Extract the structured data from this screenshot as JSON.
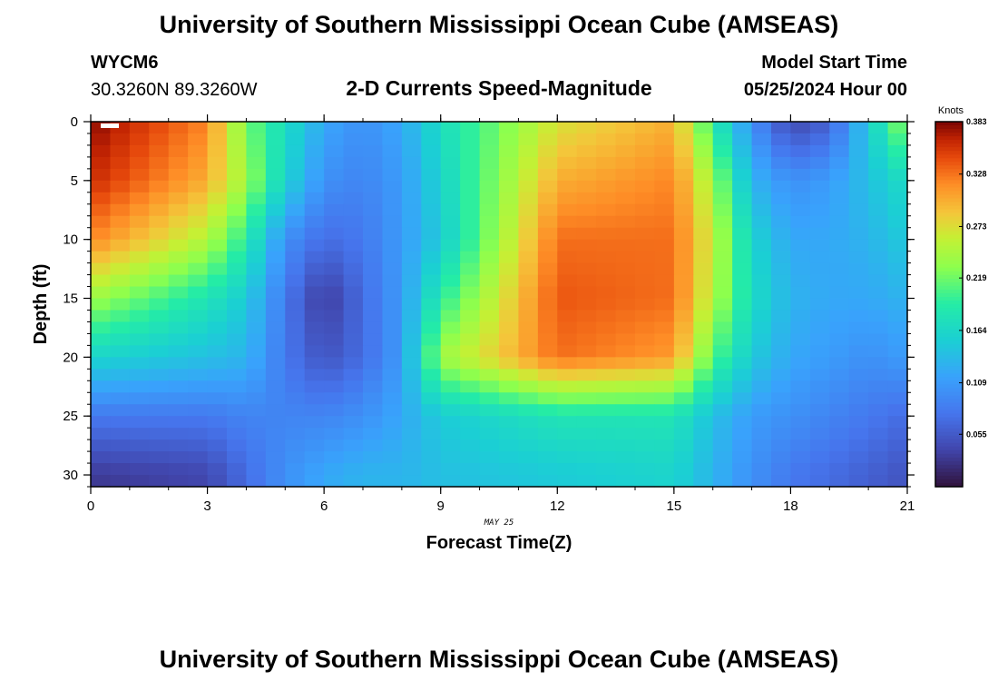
{
  "chart_data": {
    "type": "heatmap",
    "title": "University of Southern Mississippi Ocean Cube (AMSEAS)",
    "footer_title": "University of Southern Mississippi Ocean Cube (AMSEAS)",
    "station": "WYCM6",
    "coordinates": "30.3260N  89.3260W",
    "subtitle": "2-D Currents Speed-Magnitude",
    "model_start_label": "Model Start Time",
    "model_start_value": "05/25/2024 Hour 00",
    "xlabel": "Forecast Time(Z)",
    "ylabel": "Depth (ft)",
    "date_label": "MAY 25",
    "x_range": [
      0,
      21
    ],
    "y_range": [
      0,
      31
    ],
    "x_ticks": [
      "0",
      "3",
      "6",
      "9",
      "12",
      "15",
      "18",
      "21"
    ],
    "x_tick_values": [
      0,
      3,
      6,
      9,
      12,
      15,
      18,
      21
    ],
    "y_ticks": [
      "0",
      "5",
      "10",
      "15",
      "20",
      "25",
      "30"
    ],
    "y_tick_values": [
      0,
      5,
      10,
      15,
      20,
      25,
      30
    ],
    "colorbar": {
      "unit": "Knots",
      "min": 0.0,
      "max": 0.383,
      "ticks": [
        "0.383",
        "0.328",
        "0.273",
        "0.219",
        "0.164",
        "0.109",
        "0.055"
      ],
      "tick_values": [
        0.383,
        0.328,
        0.273,
        0.219,
        0.164,
        0.109,
        0.055
      ]
    },
    "grid": {
      "times": [
        0,
        3,
        4,
        5,
        6,
        7,
        8,
        9,
        12,
        15,
        16,
        17,
        18,
        19,
        20,
        21
      ],
      "depths": [
        0,
        5,
        10,
        15,
        20,
        25,
        30
      ],
      "values": [
        [
          0.38,
          0.32,
          0.22,
          0.17,
          0.12,
          0.1,
          0.12,
          0.17,
          0.27,
          0.3,
          0.19,
          0.1,
          0.04,
          0.06,
          0.15,
          0.24
        ],
        [
          0.36,
          0.3,
          0.24,
          0.16,
          0.1,
          0.09,
          0.11,
          0.16,
          0.3,
          0.32,
          0.24,
          0.13,
          0.1,
          0.11,
          0.14,
          0.17
        ],
        [
          0.32,
          0.25,
          0.19,
          0.1,
          0.07,
          0.08,
          0.11,
          0.15,
          0.33,
          0.33,
          0.26,
          0.16,
          0.12,
          0.12,
          0.13,
          0.15
        ],
        [
          0.24,
          0.18,
          0.15,
          0.08,
          0.03,
          0.07,
          0.11,
          0.19,
          0.34,
          0.33,
          0.25,
          0.17,
          0.13,
          0.12,
          0.12,
          0.13
        ],
        [
          0.16,
          0.14,
          0.13,
          0.08,
          0.05,
          0.07,
          0.11,
          0.24,
          0.33,
          0.31,
          0.21,
          0.15,
          0.12,
          0.11,
          0.1,
          0.11
        ],
        [
          0.08,
          0.08,
          0.09,
          0.09,
          0.09,
          0.1,
          0.12,
          0.15,
          0.18,
          0.18,
          0.14,
          0.11,
          0.1,
          0.09,
          0.08,
          0.07
        ],
        [
          0.03,
          0.04,
          0.07,
          0.1,
          0.12,
          0.13,
          0.13,
          0.14,
          0.15,
          0.16,
          0.13,
          0.1,
          0.08,
          0.07,
          0.06,
          0.05
        ]
      ]
    }
  }
}
